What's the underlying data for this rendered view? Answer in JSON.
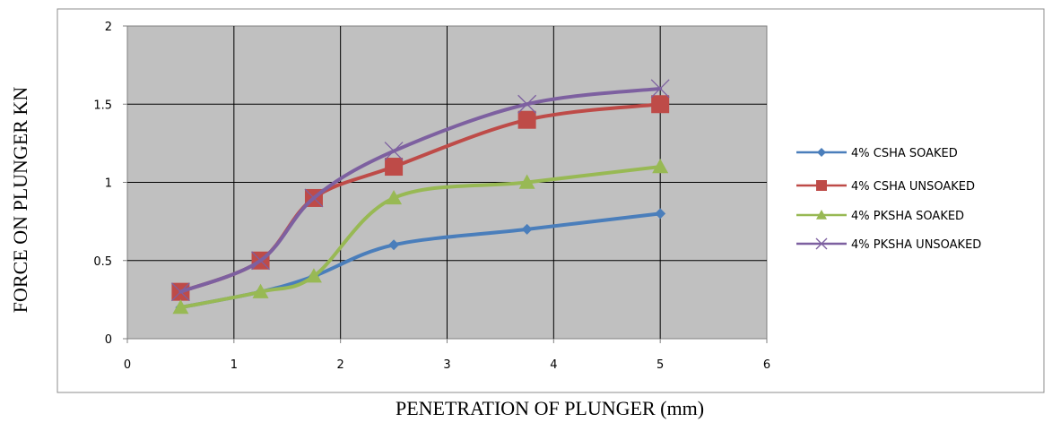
{
  "chart_data": {
    "type": "line",
    "title": "",
    "xlabel": "PENETRATION OF PLUNGER (mm)",
    "ylabel": "FORCE ON PLUNGER KN",
    "xlim": [
      0,
      6
    ],
    "ylim": [
      0,
      2
    ],
    "x_ticks": [
      "0",
      "1",
      "2",
      "3",
      "4",
      "5",
      "6"
    ],
    "y_ticks": [
      "0",
      "0.5",
      "1",
      "1.5",
      "2"
    ],
    "grid": true,
    "legend_position": "right",
    "plot_background": "#c0c0c0",
    "series": [
      {
        "name": "4% CSHA SOAKED",
        "color": "#4a7ebb",
        "marker": "diamond",
        "x": [
          0.5,
          1.25,
          1.75,
          2.5,
          3.75,
          5
        ],
        "y": [
          0.2,
          0.3,
          0.4,
          0.6,
          0.7,
          0.8
        ]
      },
      {
        "name": "4% CSHA UNSOAKED",
        "color": "#be4b48",
        "marker": "square",
        "x": [
          0.5,
          1.25,
          1.75,
          2.5,
          3.75,
          5
        ],
        "y": [
          0.3,
          0.5,
          0.9,
          1.1,
          1.4,
          1.5
        ]
      },
      {
        "name": "4% PKSHA SOAKED",
        "color": "#98b954",
        "marker": "triangle",
        "x": [
          0.5,
          1.25,
          1.75,
          2.5,
          3.75,
          5
        ],
        "y": [
          0.2,
          0.3,
          0.4,
          0.9,
          1.0,
          1.1
        ]
      },
      {
        "name": "4% PKSHA UNSOAKED",
        "color": "#7d60a0",
        "marker": "x",
        "x": [
          0.5,
          1.25,
          1.75,
          2.5,
          3.75,
          5
        ],
        "y": [
          0.3,
          0.5,
          0.9,
          1.2,
          1.5,
          1.6
        ]
      }
    ]
  }
}
